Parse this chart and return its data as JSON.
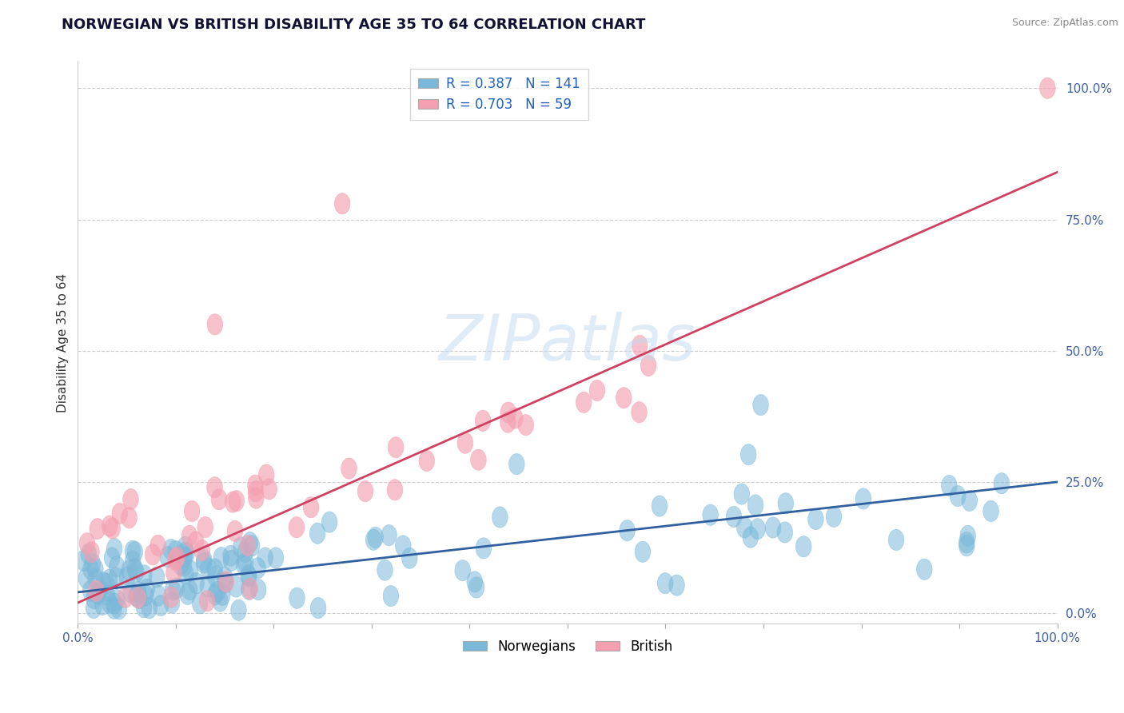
{
  "title": "NORWEGIAN VS BRITISH DISABILITY AGE 35 TO 64 CORRELATION CHART",
  "source": "Source: ZipAtlas.com",
  "ylabel": "Disability Age 35 to 64",
  "xlim": [
    0.0,
    1.0
  ],
  "ylim": [
    -0.02,
    1.05
  ],
  "x_tick_positions": [
    0.0,
    0.1,
    0.2,
    0.3,
    0.4,
    0.5,
    0.6,
    0.7,
    0.8,
    0.9,
    1.0
  ],
  "x_tick_labels": [
    "0.0%",
    "",
    "",
    "",
    "",
    "",
    "",
    "",
    "",
    "",
    "100.0%"
  ],
  "y_tick_positions": [
    0.0,
    0.25,
    0.5,
    0.75,
    1.0
  ],
  "y_tick_labels": [
    "0.0%",
    "25.0%",
    "50.0%",
    "75.0%",
    "100.0%"
  ],
  "norwegian_color": "#7ab8d9",
  "british_color": "#f4a0b0",
  "norwegian_line_color": "#3060a0",
  "british_line_color": "#d04060",
  "norwegian_R": 0.387,
  "norwegian_N": 141,
  "british_R": 0.703,
  "british_N": 59,
  "watermark": "ZIPatlas",
  "watermark_color": "#c0d8ee",
  "background_color": "#ffffff",
  "grid_color": "#cccccc",
  "title_fontsize": 13,
  "axis_label_fontsize": 11,
  "tick_fontsize": 11,
  "legend_fontsize": 12,
  "tick_color": "#4060a0",
  "legend_label_color": "#2060c0",
  "nor_line_endpoints": [
    0.0,
    1.0,
    0.04,
    0.25
  ],
  "brit_line_endpoints": [
    0.0,
    1.0,
    0.02,
    0.84
  ]
}
